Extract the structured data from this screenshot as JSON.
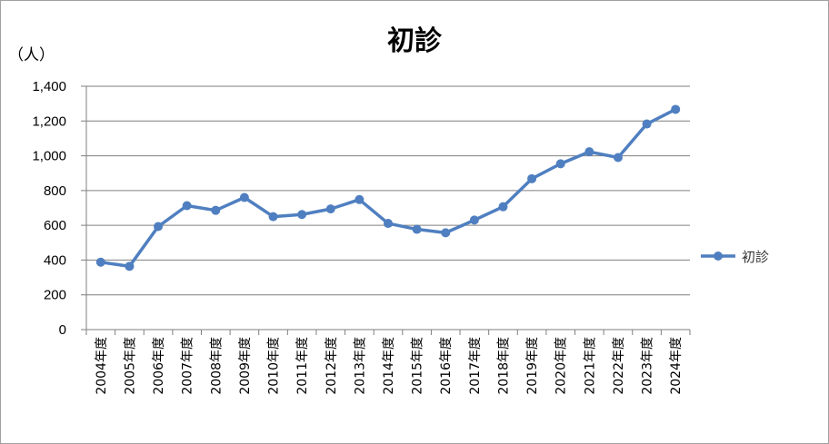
{
  "chart_data": {
    "type": "line",
    "title": "初診",
    "ylabel": "（人）",
    "ylim": [
      0,
      1400
    ],
    "yticks": [
      "0",
      "200",
      "400",
      "600",
      "800",
      "1,000",
      "1,200",
      "1,400"
    ],
    "ytick_values": [
      0,
      200,
      400,
      600,
      800,
      1000,
      1200,
      1400
    ],
    "grid": true,
    "legend": "right",
    "categories": [
      "2004年度",
      "2005年度",
      "2006年度",
      "2007年度",
      "2008年度",
      "2009年度",
      "2010年度",
      "2011年度",
      "2012年度",
      "2013年度",
      "2014年度",
      "2015年度",
      "2016年度",
      "2017年度",
      "2018年度",
      "2019年度",
      "2020年度",
      "2021年度",
      "2022年度",
      "2023年度",
      "2024年度"
    ],
    "series": [
      {
        "name": "初診",
        "color": "#4f7fc0",
        "values": [
          388,
          364,
          593,
          713,
          686,
          760,
          650,
          662,
          694,
          748,
          611,
          577,
          557,
          630,
          707,
          868,
          954,
          1023,
          990,
          1183,
          1267
        ]
      }
    ]
  }
}
